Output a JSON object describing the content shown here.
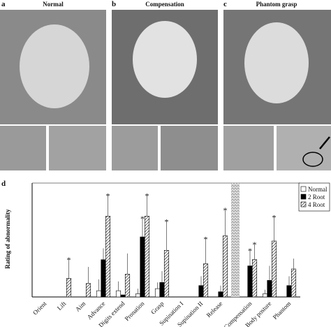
{
  "panels": [
    {
      "label": "a",
      "title": "Normal"
    },
    {
      "label": "b",
      "title": "Compensation"
    },
    {
      "label": "c",
      "title": "Phantom grasp"
    }
  ],
  "chart_data": {
    "type": "bar",
    "label": "d",
    "ylabel": "Rating of abnormality",
    "categories": [
      "Orient",
      "Lift",
      "Aim",
      "Advance",
      "Digits extend",
      "Pronation",
      "Grasp",
      "Supination I",
      "Supination II",
      "Release",
      "Compensation",
      "Body posture",
      "Phantom"
    ],
    "ylim": [
      0,
      1.1
    ],
    "legend": "top-right",
    "series": [
      {
        "name": "Normal",
        "color": "#ffffff",
        "values": [
          0,
          0,
          0,
          0.06,
          0.06,
          0.03,
          0.08,
          0,
          0,
          0,
          0,
          0.03,
          0
        ],
        "errors": [
          null,
          null,
          null,
          0.11,
          0.09,
          0.05,
          0.06,
          null,
          null,
          null,
          null,
          0.04,
          null
        ],
        "stars": [
          null,
          null,
          null,
          null,
          null,
          null,
          null,
          null,
          null,
          null,
          null,
          null,
          null
        ]
      },
      {
        "name": "2 Root",
        "color": "#000000",
        "values": [
          0,
          0,
          0,
          0.36,
          0.02,
          0.58,
          0.14,
          0,
          0.11,
          0.05,
          0.3,
          0.16,
          0.11
        ],
        "errors": [
          null,
          null,
          null,
          0.11,
          null,
          0.17,
          0.11,
          null,
          0.09,
          0.06,
          0.14,
          0.14,
          0.09
        ],
        "stars": [
          null,
          null,
          null,
          null,
          null,
          "*",
          null,
          null,
          null,
          null,
          "*",
          null,
          null
        ]
      },
      {
        "name": "4 Root",
        "color": "#333333",
        "pattern": "diagonal",
        "values": [
          0,
          0.18,
          0.13,
          0.78,
          0.22,
          0.78,
          0.45,
          0,
          0.32,
          0.59,
          0.36,
          0.54,
          0.27
        ],
        "errors": [
          null,
          0.17,
          0.16,
          0.19,
          0.2,
          0.19,
          0.27,
          null,
          0.23,
          0.24,
          0.14,
          0.22,
          0.1
        ],
        "stars": [
          null,
          "*",
          null,
          "*",
          null,
          "*",
          "*",
          null,
          "*",
          "*",
          "*",
          "*",
          null
        ]
      }
    ]
  }
}
